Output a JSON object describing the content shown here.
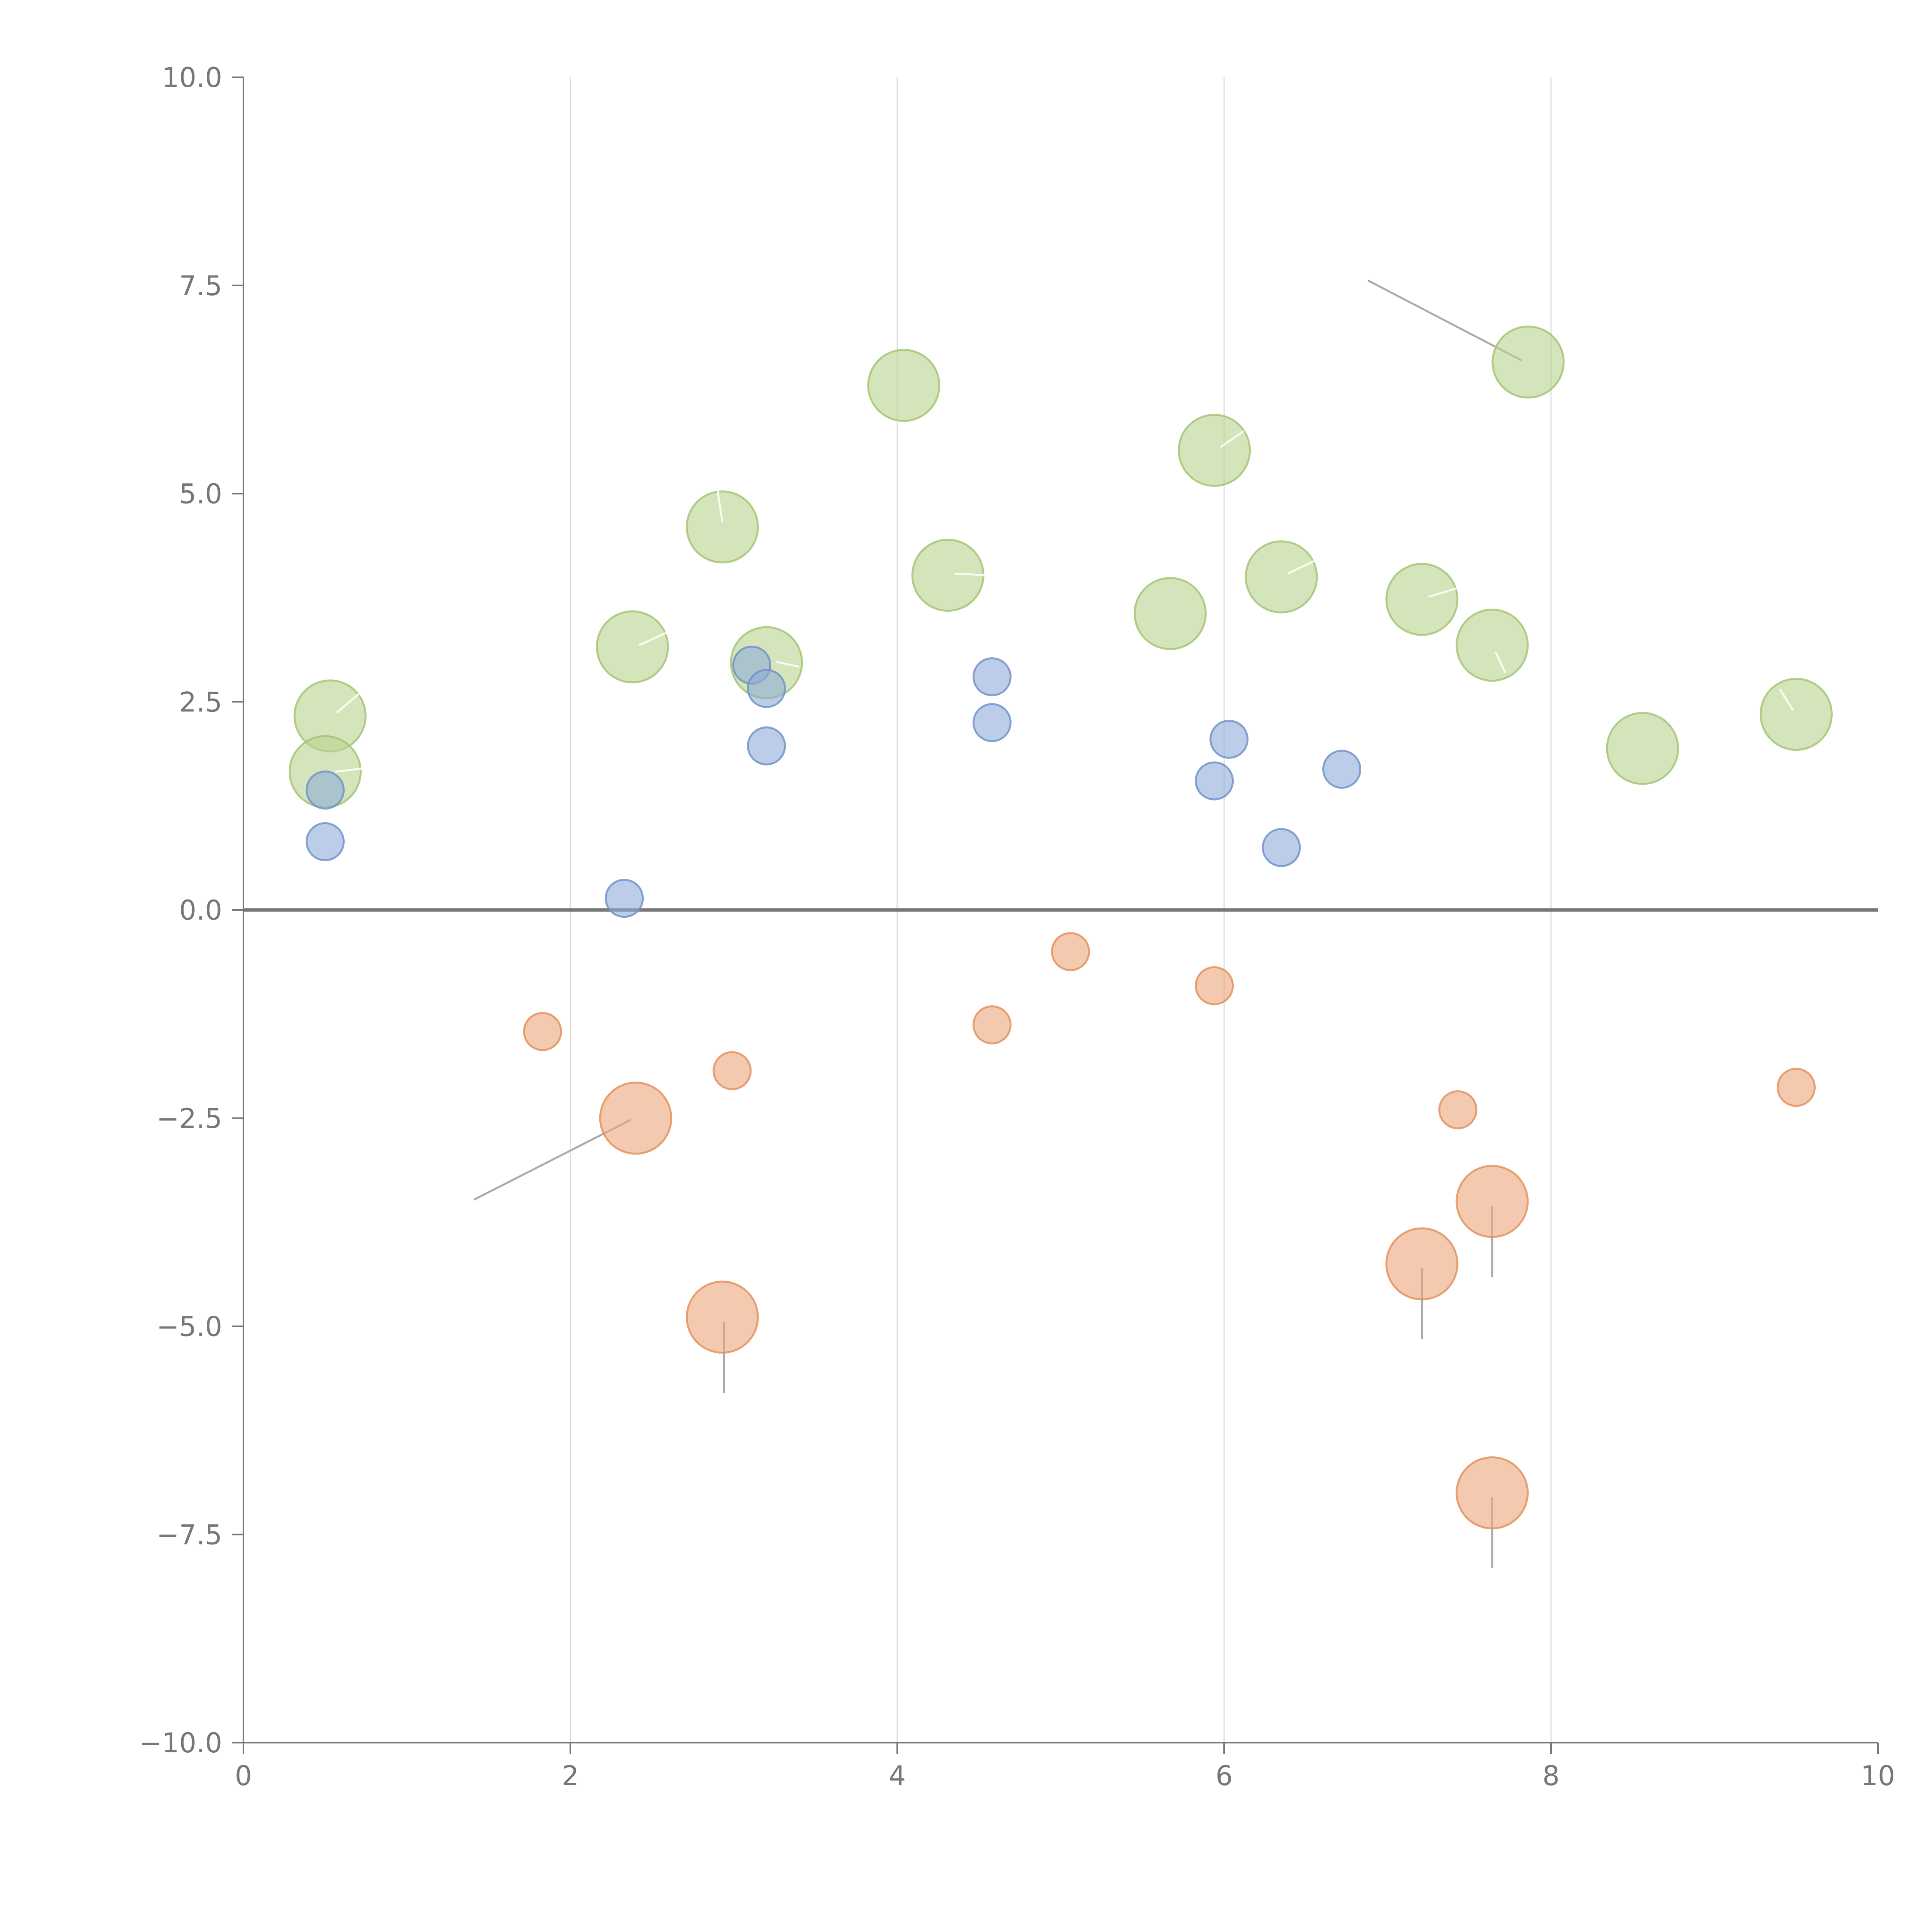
{
  "chart_data": {
    "type": "scatter",
    "title": "",
    "xlabel": "",
    "ylabel": "",
    "xlim": [
      0,
      10
    ],
    "ylim": [
      -10,
      10
    ],
    "x_ticks": [
      0,
      2,
      4,
      6,
      8,
      10
    ],
    "x_tick_labels": [
      "0",
      "2",
      "4",
      "6",
      "8",
      "10"
    ],
    "y_ticks": [
      10,
      7.5,
      5,
      2.5,
      0,
      -2.5,
      -5,
      -7.5,
      -10
    ],
    "y_tick_labels": [
      "10.0",
      "7.5",
      "5.0",
      "2.5",
      "0.0",
      "−2.5",
      "−5.0",
      "−7.5",
      "−10.0"
    ],
    "vertical_grid": [
      2,
      4,
      6,
      8
    ],
    "zero_line": true,
    "legend": "none",
    "colors": {
      "green": "#b8d38f",
      "green_stroke": "#a3c271",
      "blue": "#8eabd8",
      "blue_stroke": "#6f8fc4",
      "orange": "#eba679",
      "orange_stroke": "#e28d58"
    },
    "series": [
      {
        "name": "green",
        "color_key": "green",
        "size": "large",
        "points": [
          {
            "x": 0.53,
            "y": 2.33
          },
          {
            "x": 0.5,
            "y": 1.66
          },
          {
            "x": 2.38,
            "y": 3.16
          },
          {
            "x": 2.93,
            "y": 4.6
          },
          {
            "x": 3.2,
            "y": 2.97
          },
          {
            "x": 4.04,
            "y": 6.3
          },
          {
            "x": 4.31,
            "y": 4.02
          },
          {
            "x": 5.67,
            "y": 3.56
          },
          {
            "x": 5.94,
            "y": 5.52
          },
          {
            "x": 6.35,
            "y": 4.0
          },
          {
            "x": 7.21,
            "y": 3.73
          },
          {
            "x": 7.64,
            "y": 3.18
          },
          {
            "x": 7.86,
            "y": 6.58
          },
          {
            "x": 8.56,
            "y": 1.94
          },
          {
            "x": 9.5,
            "y": 2.35
          }
        ]
      },
      {
        "name": "blue",
        "color_key": "blue",
        "size": "small",
        "points": [
          {
            "x": 0.5,
            "y": 1.44
          },
          {
            "x": 0.5,
            "y": 0.82
          },
          {
            "x": 2.33,
            "y": 0.14
          },
          {
            "x": 3.11,
            "y": 2.94
          },
          {
            "x": 3.2,
            "y": 2.66
          },
          {
            "x": 3.2,
            "y": 1.97
          },
          {
            "x": 4.58,
            "y": 2.8
          },
          {
            "x": 4.58,
            "y": 2.25
          },
          {
            "x": 5.94,
            "y": 1.55
          },
          {
            "x": 6.03,
            "y": 2.05
          },
          {
            "x": 6.35,
            "y": 0.75
          },
          {
            "x": 6.72,
            "y": 1.69
          }
        ]
      },
      {
        "name": "orange",
        "color_key": "orange",
        "size": "mixed",
        "points": [
          {
            "x": 1.83,
            "y": -1.46,
            "size": "small"
          },
          {
            "x": 2.4,
            "y": -2.5,
            "size": "large"
          },
          {
            "x": 2.99,
            "y": -1.93,
            "size": "small"
          },
          {
            "x": 2.93,
            "y": -4.89,
            "size": "large"
          },
          {
            "x": 4.58,
            "y": -1.38,
            "size": "small"
          },
          {
            "x": 5.06,
            "y": -0.5,
            "size": "small"
          },
          {
            "x": 5.94,
            "y": -0.91,
            "size": "small"
          },
          {
            "x": 7.43,
            "y": -2.4,
            "size": "small"
          },
          {
            "x": 7.64,
            "y": -3.5,
            "size": "large"
          },
          {
            "x": 7.21,
            "y": -4.25,
            "size": "large"
          },
          {
            "x": 7.64,
            "y": -7.0,
            "size": "large"
          },
          {
            "x": 9.5,
            "y": -2.13,
            "size": "small"
          }
        ]
      }
    ],
    "leader_lines": [
      {
        "x1": 7.82,
        "y1": 6.6,
        "x2": 6.88,
        "y2": 7.56
      },
      {
        "x1": 2.37,
        "y1": -2.52,
        "x2": 1.41,
        "y2": -3.48
      },
      {
        "x1": 2.94,
        "y1": -4.95,
        "x2": 2.94,
        "y2": -5.8
      },
      {
        "x1": 7.21,
        "y1": -4.3,
        "x2": 7.21,
        "y2": -5.15
      },
      {
        "x1": 7.64,
        "y1": -3.56,
        "x2": 7.64,
        "y2": -4.41
      },
      {
        "x1": 7.64,
        "y1": -7.05,
        "x2": 7.64,
        "y2": -7.9
      }
    ],
    "spokes": [
      {
        "x1": 0.57,
        "y1": 2.37,
        "x2": 0.71,
        "y2": 2.6
      },
      {
        "x1": 0.56,
        "y1": 1.66,
        "x2": 0.73,
        "y2": 1.7
      },
      {
        "x1": 2.42,
        "y1": 3.18,
        "x2": 2.6,
        "y2": 3.34
      },
      {
        "x1": 2.93,
        "y1": 4.66,
        "x2": 2.9,
        "y2": 5.05
      },
      {
        "x1": 3.26,
        "y1": 2.98,
        "x2": 3.4,
        "y2": 2.92
      },
      {
        "x1": 4.35,
        "y1": 4.04,
        "x2": 4.55,
        "y2": 4.02
      },
      {
        "x1": 5.98,
        "y1": 5.56,
        "x2": 6.12,
        "y2": 5.75
      },
      {
        "x1": 6.39,
        "y1": 4.04,
        "x2": 6.58,
        "y2": 4.22
      },
      {
        "x1": 7.25,
        "y1": 3.76,
        "x2": 7.45,
        "y2": 3.88
      },
      {
        "x1": 7.66,
        "y1": 3.1,
        "x2": 7.72,
        "y2": 2.85
      },
      {
        "x1": 9.48,
        "y1": 2.4,
        "x2": 9.4,
        "y2": 2.65
      }
    ]
  }
}
